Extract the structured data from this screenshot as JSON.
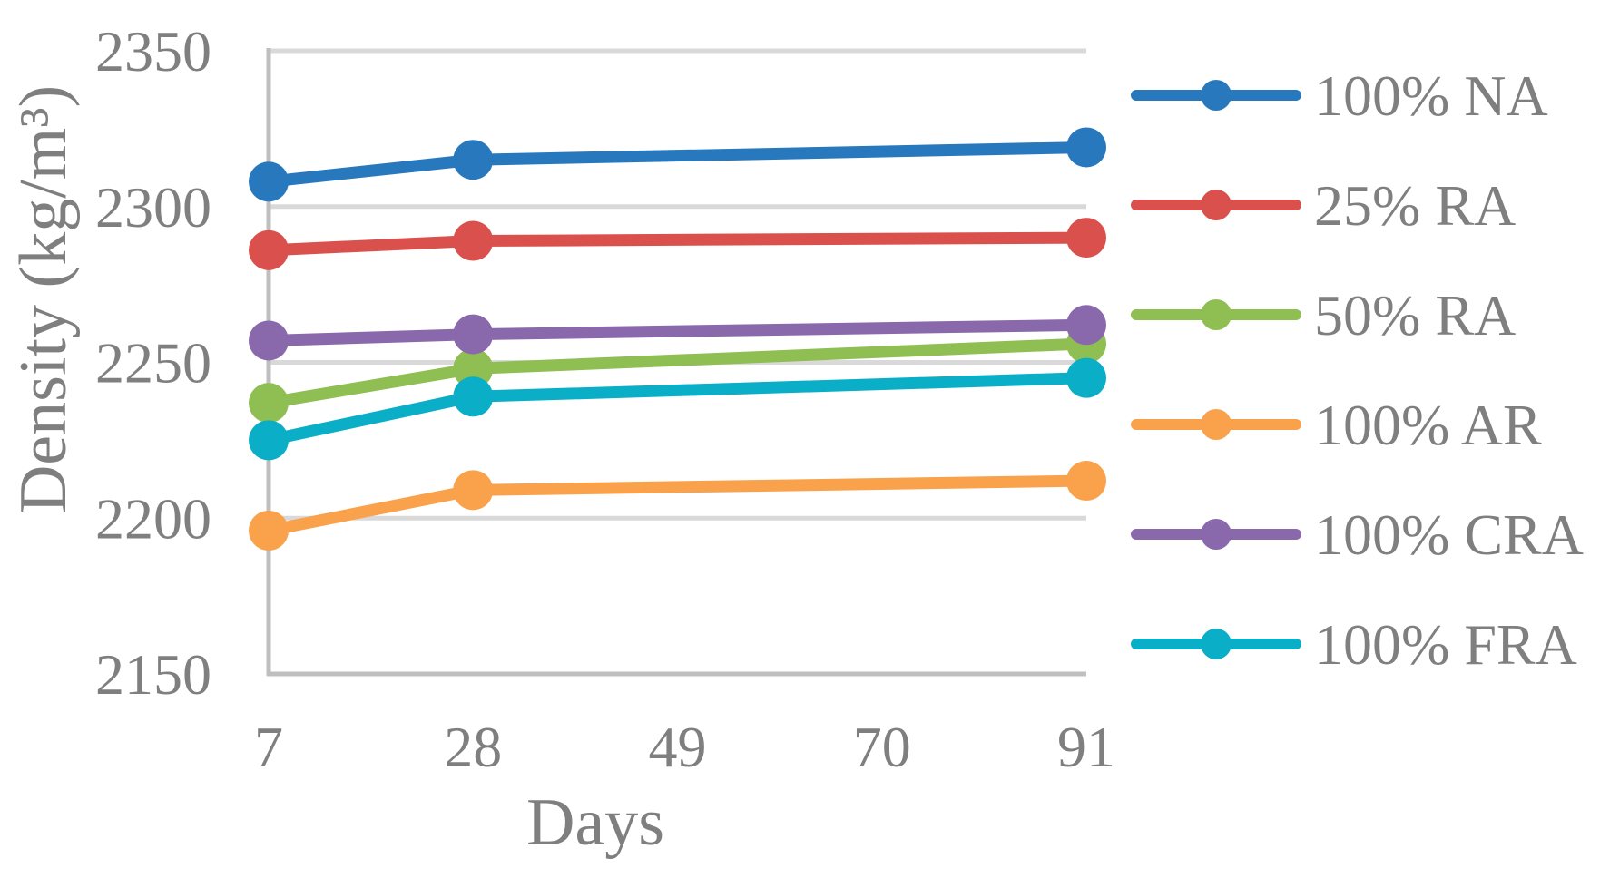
{
  "chart_data": {
    "type": "line",
    "title": "",
    "xlabel": "Days",
    "ylabel": "Density (kg/m³)",
    "x": [
      7,
      28,
      91
    ],
    "x_ticks": [
      7,
      28,
      49,
      70,
      91
    ],
    "y_ticks": [
      2150,
      2200,
      2250,
      2300,
      2350
    ],
    "ylim": [
      2150,
      2350
    ],
    "xlim": [
      7,
      91
    ],
    "grid": "horizontal-only",
    "legend_position": "right",
    "series": [
      {
        "name": "100% NA",
        "color": "#2878BE",
        "values": [
          2308,
          2315,
          2319
        ]
      },
      {
        "name": "25% RA",
        "color": "#D9504C",
        "values": [
          2286,
          2289,
          2290
        ]
      },
      {
        "name": "50% RA",
        "color": "#8FBE53",
        "values": [
          2237,
          2248,
          2256
        ]
      },
      {
        "name": "100% AR",
        "color": "#F9A14B",
        "values": [
          2196,
          2209,
          2212
        ]
      },
      {
        "name": "100% CRA",
        "color": "#8A68AC",
        "values": [
          2257,
          2259,
          2262
        ]
      },
      {
        "name": "100% FRA",
        "color": "#0AAEC6",
        "values": [
          2225,
          2239,
          2245
        ]
      }
    ],
    "style": {
      "axis_color": "#BFBFBF",
      "grid_color": "#D9D9D9",
      "text_color": "#7F7F7F"
    }
  }
}
